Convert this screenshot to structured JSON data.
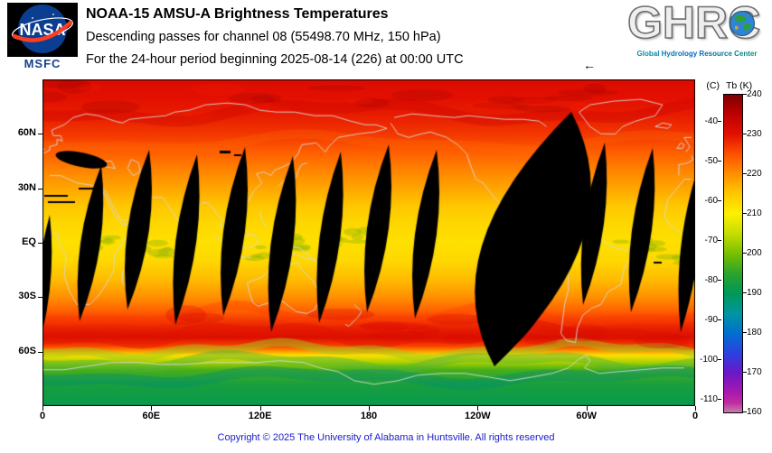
{
  "header": {
    "nasa_logo_text": "NASA",
    "msfc_label": "MSFC",
    "title": "NOAA-15 AMSU-A Brightness Temperatures",
    "subtitle": "Descending passes for channel 08 (55498.70 MHz, 150 hPa)",
    "period": "For the 24-hour period beginning 2025-08-14 (226) at 00:00 UTC",
    "ghrc_acronym": "GHRC",
    "ghrc_tagline": "Global Hydrology Resource Center"
  },
  "map": {
    "lat_labels": [
      "60N",
      "30N",
      "EQ",
      "30S",
      "60S"
    ],
    "lon_labels": [
      "0",
      "60E",
      "120E",
      "180",
      "120W",
      "60W",
      "0"
    ],
    "prev_arrow": "←"
  },
  "colorbar": {
    "left_unit_label": "(C)",
    "right_unit_label": "Tb (K)",
    "kelvin_ticks": [
      240,
      230,
      220,
      210,
      200,
      190,
      180,
      170,
      160
    ],
    "celsius_ticks": [
      -40,
      -50,
      -60,
      -70,
      -80,
      -90,
      -100,
      -110
    ],
    "gradient_stops": [
      {
        "at": 0.0,
        "color": "#7d0000"
      },
      {
        "at": 0.05,
        "color": "#b40000"
      },
      {
        "at": 0.125,
        "color": "#e31000"
      },
      {
        "at": 0.19,
        "color": "#ff5400"
      },
      {
        "at": 0.25,
        "color": "#ff9000"
      },
      {
        "at": 0.3125,
        "color": "#ffc800"
      },
      {
        "at": 0.375,
        "color": "#fdf000"
      },
      {
        "at": 0.4375,
        "color": "#c6dc00"
      },
      {
        "at": 0.5,
        "color": "#78c000"
      },
      {
        "at": 0.5625,
        "color": "#2aa42c"
      },
      {
        "at": 0.625,
        "color": "#009858"
      },
      {
        "at": 0.6875,
        "color": "#0096a0"
      },
      {
        "at": 0.75,
        "color": "#0070d0"
      },
      {
        "at": 0.8125,
        "color": "#2a42e0"
      },
      {
        "at": 0.875,
        "color": "#6a18c8"
      },
      {
        "at": 0.9375,
        "color": "#aa18b0"
      },
      {
        "at": 0.97,
        "color": "#c02ca0"
      },
      {
        "at": 1.0,
        "color": "#c57fae"
      }
    ]
  },
  "footer": {
    "copyright": "Copyright © 2025 The University of Alabama in Huntsville. All rights reserved"
  },
  "chart_data": {
    "type": "heatmap",
    "title": "NOAA-15 AMSU-A Brightness Temperatures",
    "satellite": "NOAA-15",
    "instrument": "AMSU-A",
    "channel": "08",
    "frequency_mhz": 55498.7,
    "pressure_level_hpa": 150,
    "pass_type": "Descending",
    "period_start": "2025-08-14 (226) at 00:00 UTC",
    "x_axis": {
      "ticks": [
        "0",
        "60E",
        "120E",
        "180",
        "120W",
        "60W",
        "0"
      ],
      "range_deg_lon": [
        0,
        360
      ]
    },
    "y_axis": {
      "ticks": [
        "60N",
        "30N",
        "EQ",
        "30S",
        "60S"
      ],
      "range_deg_lat": [
        -90,
        90
      ]
    },
    "colorbar_range_k": [
      160,
      240
    ],
    "colorbar_range_c": [
      -113,
      -33
    ],
    "latitudinal_profile_k": [
      [
        90,
        231
      ],
      [
        80,
        230
      ],
      [
        70,
        229
      ],
      [
        60,
        227
      ],
      [
        50,
        224
      ],
      [
        40,
        221
      ],
      [
        30,
        218
      ],
      [
        20,
        215
      ],
      [
        10,
        213
      ],
      [
        0,
        212
      ],
      [
        -10,
        213
      ],
      [
        -20,
        216
      ],
      [
        -30,
        220
      ],
      [
        -38,
        224
      ],
      [
        -45,
        228
      ],
      [
        -52,
        231
      ],
      [
        -57,
        226
      ],
      [
        -62,
        212
      ],
      [
        -66,
        203
      ],
      [
        -70,
        197
      ],
      [
        -78,
        193
      ],
      [
        -90,
        191
      ]
    ],
    "data_void_note": "black lens-shaped regions = gaps between descending orbital swaths"
  }
}
